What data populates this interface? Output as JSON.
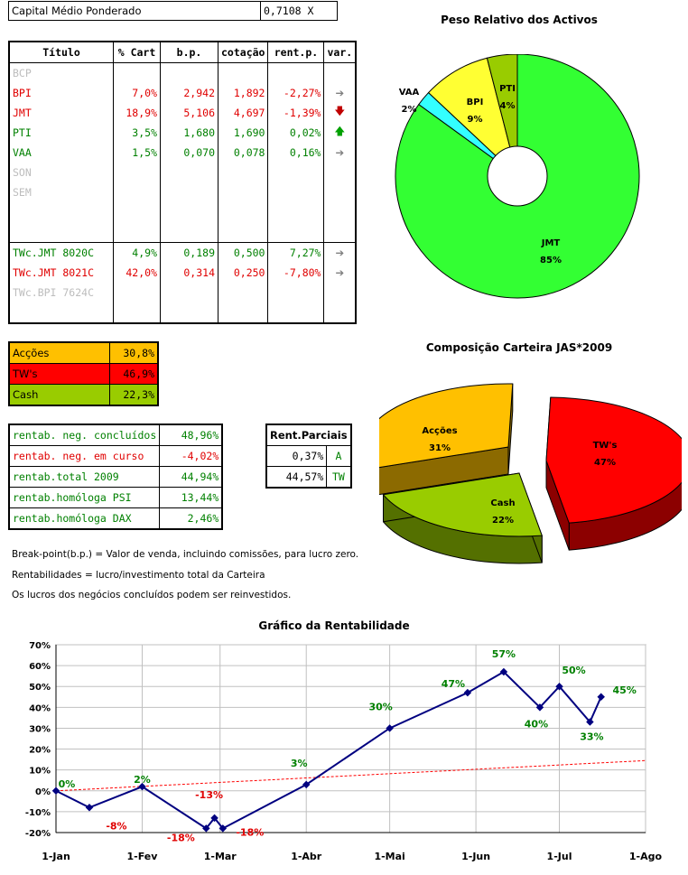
{
  "capital": {
    "label": "Capital Médio Ponderado",
    "value": "0,7108 X"
  },
  "assets": {
    "headers": [
      "Título",
      "% Cart",
      "b.p.",
      "cotação",
      "rent.p.",
      "var."
    ],
    "rows": [
      {
        "titulo": "BCP",
        "cart": "",
        "bp": "",
        "cot": "",
        "rent": "",
        "var": "",
        "color": "grey"
      },
      {
        "titulo": "BPI",
        "cart": "7,0%",
        "bp": "2,942",
        "cot": "1,892",
        "rent": "-2,27%",
        "var": "right",
        "color": "red"
      },
      {
        "titulo": "JMT",
        "cart": "18,9%",
        "bp": "5,106",
        "cot": "4,697",
        "rent": "-1,39%",
        "var": "down",
        "color": "red"
      },
      {
        "titulo": "PTI",
        "cart": "3,5%",
        "bp": "1,680",
        "cot": "1,690",
        "rent": "0,02%",
        "var": "up",
        "color": "green"
      },
      {
        "titulo": "VAA",
        "cart": "1,5%",
        "bp": "0,070",
        "cot": "0,078",
        "rent": "0,16%",
        "var": "right",
        "color": "green"
      },
      {
        "titulo": "SON",
        "cart": "",
        "bp": "",
        "cot": "",
        "rent": "",
        "var": "",
        "color": "grey"
      },
      {
        "titulo": "SEM",
        "cart": "",
        "bp": "",
        "cot": "",
        "rent": "",
        "var": "",
        "color": "grey"
      },
      {
        "titulo": "",
        "cart": "",
        "bp": "",
        "cot": "",
        "rent": "",
        "var": "",
        "color": "grey"
      },
      {
        "titulo": "",
        "cart": "",
        "bp": "",
        "cot": "",
        "rent": "",
        "var": "",
        "color": "grey"
      },
      {
        "titulo": "TWc.JMT 8020C",
        "cart": "4,9%",
        "bp": "0,189",
        "cot": "0,500",
        "rent": "7,27%",
        "var": "right",
        "color": "green"
      },
      {
        "titulo": "TWc.JMT 8021C",
        "cart": "42,0%",
        "bp": "0,314",
        "cot": "0,250",
        "rent": "-7,80%",
        "var": "right",
        "color": "red"
      },
      {
        "titulo": "TWc.BPI 7624C",
        "cart": "",
        "bp": "",
        "cot": "",
        "rent": "",
        "var": "",
        "color": "grey"
      },
      {
        "titulo": "",
        "cart": "",
        "bp": "",
        "cot": "",
        "rent": "",
        "var": "",
        "color": "grey"
      }
    ]
  },
  "composition": [
    {
      "label": "Acções",
      "value": "30,8%",
      "color": "#ffc000"
    },
    {
      "label": "TW's",
      "value": "46,9%",
      "color": "#ff0000"
    },
    {
      "label": "Cash",
      "value": "22,3%",
      "color": "#99cc00"
    }
  ],
  "rentab": [
    {
      "label": "rentab. neg. concluídos",
      "value": "48,96%",
      "color": "green"
    },
    {
      "label": "rentab. neg. em curso",
      "value": "-4,02%",
      "color": "red"
    },
    {
      "label": "rentab.total 2009",
      "value": "44,94%",
      "color": "green"
    },
    {
      "label": "rentab.homóloga PSI",
      "value": "13,44%",
      "color": "green"
    },
    {
      "label": "rentab.homóloga DAX",
      "value": "2,46%",
      "color": "green"
    }
  ],
  "rent_parciais": {
    "header": "Rent.Parciais",
    "rows": [
      {
        "value": "0,37%",
        "tag": "A"
      },
      {
        "value": "44,57%",
        "tag": "TW"
      }
    ]
  },
  "notes": [
    "Break-point(b.p.) = Valor de venda, incluindo comissões, para lucro zero.",
    "Rentabilidades = lucro/investimento total da Carteira",
    "Os lucros dos negócios concluídos podem ser reinvestidos."
  ],
  "chart_data": [
    {
      "type": "pie",
      "title": "Peso Relativo dos Activos",
      "slices": [
        {
          "label": "JMT",
          "value": 85,
          "pct_label": "85%",
          "color": "#33ff33"
        },
        {
          "label": "VAA",
          "value": 2,
          "pct_label": "2%",
          "color": "#33ffff"
        },
        {
          "label": "BPI",
          "value": 9,
          "pct_label": "9%",
          "color": "#ffff33"
        },
        {
          "label": "PTI",
          "value": 4,
          "pct_label": "4%",
          "color": "#99cc00"
        }
      ]
    },
    {
      "type": "pie",
      "title": "Composição Carteira JAS*2009",
      "slices": [
        {
          "label": "TW's",
          "value": 47,
          "pct_label": "47%",
          "color": "#ff0000"
        },
        {
          "label": "Cash",
          "value": 22,
          "pct_label": "22%",
          "color": "#99cc00"
        },
        {
          "label": "Acções",
          "value": 31,
          "pct_label": "31%",
          "color": "#ffc000"
        }
      ]
    },
    {
      "type": "line",
      "title": "Gráfico da Rentabilidade",
      "x_ticks": [
        "1-Jan",
        "1-Fev",
        "1-Mar",
        "1-Abr",
        "1-Mai",
        "1-Jun",
        "1-Jul",
        "1-Ago"
      ],
      "y_ticks": [
        "-20%",
        "-10%",
        "0%",
        "10%",
        "20%",
        "30%",
        "40%",
        "50%",
        "60%",
        "70%"
      ],
      "ylim": [
        -20,
        70
      ],
      "xlim_days": [
        0,
        212
      ],
      "series": [
        {
          "color": "#000080",
          "points": [
            {
              "day": 0,
              "value": 0,
              "label": "0%"
            },
            {
              "day": 12,
              "value": -8,
              "label": "-8%"
            },
            {
              "day": 31,
              "value": 2,
              "label": "2%"
            },
            {
              "day": 54,
              "value": -18,
              "label": "-18%"
            },
            {
              "day": 57,
              "value": -13,
              "label": "-13%"
            },
            {
              "day": 60,
              "value": -18,
              "label": "-18%"
            },
            {
              "day": 90,
              "value": 3,
              "label": "3%"
            },
            {
              "day": 120,
              "value": 30,
              "label": "30%"
            },
            {
              "day": 148,
              "value": 47,
              "label": "47%"
            },
            {
              "day": 161,
              "value": 57,
              "label": "57%"
            },
            {
              "day": 174,
              "value": 40,
              "label": "40%"
            },
            {
              "day": 181,
              "value": 50,
              "label": "50%"
            },
            {
              "day": 192,
              "value": 33,
              "label": "33%"
            },
            {
              "day": 196,
              "value": 45,
              "label": "45%"
            }
          ]
        },
        {
          "color": "#ff0000",
          "dashed": true,
          "points": [
            {
              "day": 0,
              "value": 0
            },
            {
              "day": 212,
              "value": 14.5
            }
          ]
        }
      ]
    }
  ]
}
